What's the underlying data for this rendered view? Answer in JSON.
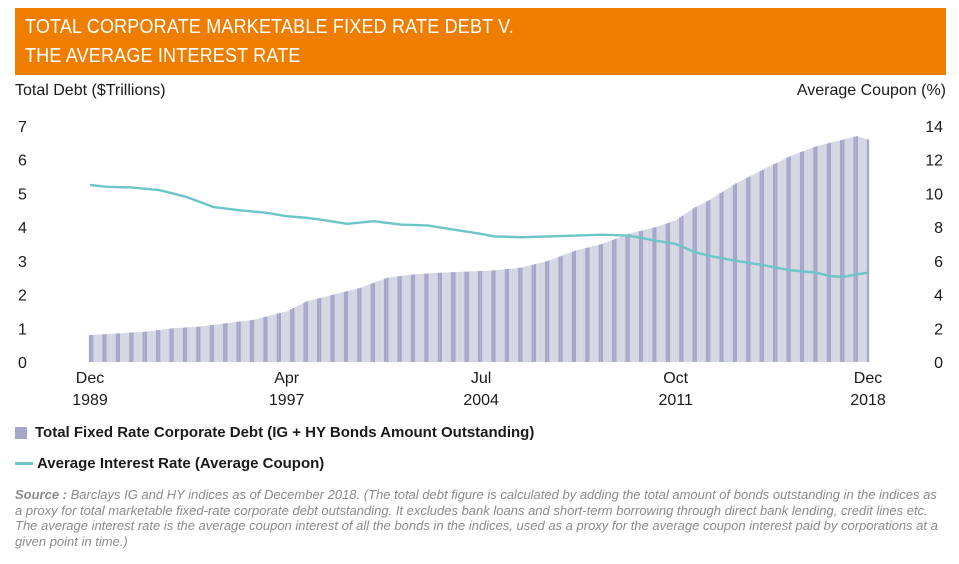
{
  "header": {
    "title_line1": "TOTAL CORPORATE MARKETABLE FIXED RATE DEBT V.",
    "title_line2": "THE AVERAGE INTEREST RATE"
  },
  "colors": {
    "banner": "#ef7d00",
    "bars": "#a6a6c8",
    "bars_light": "#d3d5e3",
    "line": "#6cc5c6"
  },
  "chart_data": {
    "type": "bar",
    "ylabel_left": "Total Debt ($Trillions)",
    "ylabel_right": "Average Coupon (%)",
    "y_left_ticks": [
      "0",
      "1",
      "2",
      "3",
      "4",
      "5",
      "6",
      "7"
    ],
    "y_right_ticks": [
      "0",
      "2",
      "4",
      "6",
      "8",
      "10",
      "12",
      "14"
    ],
    "ylim_left": [
      0,
      7
    ],
    "ylim_right": [
      0,
      14
    ],
    "x_tick_labels": [
      {
        "top": "Dec",
        "bottom": "1989",
        "year": 1989.92
      },
      {
        "top": "Apr",
        "bottom": "1997",
        "year": 1997.25
      },
      {
        "top": "Jul",
        "bottom": "2004",
        "year": 2004.5
      },
      {
        "top": "Oct",
        "bottom": "2011",
        "year": 2011.75
      },
      {
        "top": "Dec",
        "bottom": "2018",
        "year": 2018.92
      }
    ],
    "xlim": [
      1989.92,
      2018.92
    ],
    "series": [
      {
        "name": "Total Fixed Rate Corporate Debt (IG + HY Bonds Amount Outstanding)",
        "kind": "bar",
        "axis": "left",
        "points": [
          [
            1989.92,
            0.8
          ],
          [
            1991.0,
            0.85
          ],
          [
            1992.0,
            0.9
          ],
          [
            1993.0,
            1.0
          ],
          [
            1994.0,
            1.05
          ],
          [
            1995.0,
            1.15
          ],
          [
            1996.0,
            1.25
          ],
          [
            1997.25,
            1.5
          ],
          [
            1998.0,
            1.8
          ],
          [
            1999.0,
            2.0
          ],
          [
            2000.0,
            2.2
          ],
          [
            2001.0,
            2.5
          ],
          [
            2002.0,
            2.6
          ],
          [
            2003.0,
            2.65
          ],
          [
            2004.5,
            2.7
          ],
          [
            2005.0,
            2.72
          ],
          [
            2006.0,
            2.8
          ],
          [
            2007.0,
            3.0
          ],
          [
            2008.0,
            3.3
          ],
          [
            2009.0,
            3.5
          ],
          [
            2010.0,
            3.8
          ],
          [
            2011.0,
            4.0
          ],
          [
            2011.75,
            4.2
          ],
          [
            2012.5,
            4.6
          ],
          [
            2013.0,
            4.8
          ],
          [
            2014.0,
            5.3
          ],
          [
            2015.0,
            5.7
          ],
          [
            2016.0,
            6.1
          ],
          [
            2017.0,
            6.4
          ],
          [
            2018.0,
            6.6
          ],
          [
            2018.5,
            6.7
          ],
          [
            2018.92,
            6.6
          ]
        ]
      },
      {
        "name": "Average Interest Rate (Average Coupon)",
        "kind": "line",
        "axis": "right",
        "points": [
          [
            1989.92,
            10.5
          ],
          [
            1990.5,
            10.4
          ],
          [
            1991.5,
            10.35
          ],
          [
            1992.5,
            10.2
          ],
          [
            1993.5,
            9.8
          ],
          [
            1994.5,
            9.2
          ],
          [
            1995.5,
            9.0
          ],
          [
            1996.5,
            8.85
          ],
          [
            1997.25,
            8.65
          ],
          [
            1998.0,
            8.55
          ],
          [
            1998.5,
            8.45
          ],
          [
            1999.5,
            8.2
          ],
          [
            2000.5,
            8.35
          ],
          [
            2001.5,
            8.15
          ],
          [
            2002.5,
            8.1
          ],
          [
            2003.5,
            7.85
          ],
          [
            2004.5,
            7.6
          ],
          [
            2005.0,
            7.45
          ],
          [
            2006.0,
            7.4
          ],
          [
            2007.0,
            7.45
          ],
          [
            2008.0,
            7.5
          ],
          [
            2009.0,
            7.55
          ],
          [
            2010.0,
            7.5
          ],
          [
            2011.0,
            7.2
          ],
          [
            2011.75,
            7.0
          ],
          [
            2012.5,
            6.5
          ],
          [
            2013.0,
            6.3
          ],
          [
            2014.0,
            6.0
          ],
          [
            2015.0,
            5.75
          ],
          [
            2016.0,
            5.45
          ],
          [
            2017.0,
            5.3
          ],
          [
            2017.5,
            5.1
          ],
          [
            2018.0,
            5.05
          ],
          [
            2018.5,
            5.2
          ],
          [
            2018.92,
            5.3
          ]
        ]
      }
    ]
  },
  "legend": {
    "bar_label": "Total Fixed Rate Corporate Debt (IG + HY Bonds Amount Outstanding)",
    "line_label": "Average Interest Rate (Average Coupon)"
  },
  "source": {
    "prefix": "Source :",
    "text": " Barclays IG and HY indices as of December 2018. (The total debt figure is calculated by adding the total amount of bonds outstanding in the indices as a proxy for total marketable fixed-rate corporate debt outstanding. It excludes bank loans and short-term borrowing through direct bank lending, credit lines etc. The average interest rate is the average coupon interest of all the bonds in the indices, used as a proxy for the average coupon interest paid by corporations at a given point in time.)"
  }
}
